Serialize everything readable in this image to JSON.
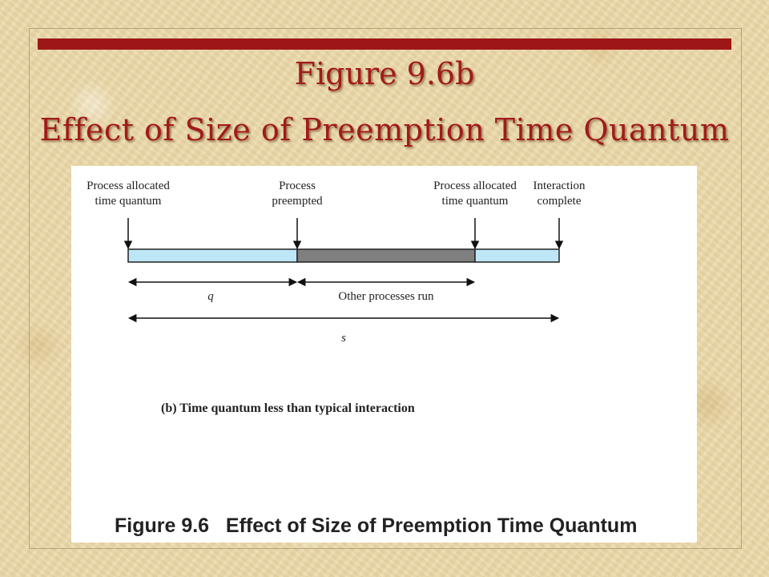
{
  "slide": {
    "title_line1": "Figure 9.6b",
    "title_line2": "Effect of Size of Preemption Time Quantum",
    "accent_color": "#9e1717"
  },
  "diagram": {
    "events": [
      {
        "line1": "Process allocated",
        "line2": "time quantum"
      },
      {
        "line1": "Process",
        "line2": "preempted"
      },
      {
        "line1": "Process allocated",
        "line2": "time quantum"
      },
      {
        "line1": "Interaction",
        "line2": "complete"
      }
    ],
    "segments": [
      {
        "kind": "running",
        "color": "#bde6f6"
      },
      {
        "kind": "other",
        "color": "#7f7f7f"
      },
      {
        "kind": "running",
        "color": "#bde6f6"
      }
    ],
    "spans": {
      "q_label": "q",
      "other_label": "Other processes run",
      "s_label": "s"
    },
    "subcaption": "(b) Time quantum less than typical interaction",
    "figure_caption": "Figure 9.6   Effect of Size of Preemption Time Quantum"
  }
}
